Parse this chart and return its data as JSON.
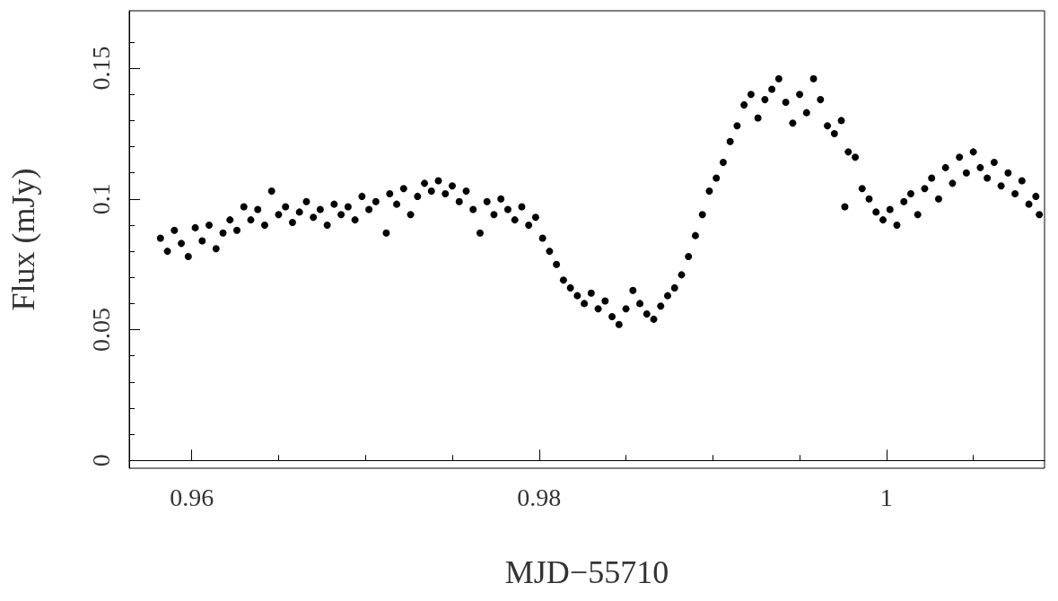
{
  "chart_data": {
    "type": "scatter",
    "xlabel": "MJD−55710",
    "ylabel": "Flux (mJy)",
    "marker": "circle",
    "xlim": [
      0.9564,
      1.0091
    ],
    "ylim": [
      -0.003,
      0.172
    ],
    "xticks": [
      0.96,
      {
        "value": 0.965,
        "label": null
      },
      {
        "value": 0.97,
        "label": null
      },
      {
        "value": 0.975,
        "label": null
      },
      0.98,
      {
        "value": 0.985,
        "label": null
      },
      {
        "value": 0.99,
        "label": null
      },
      {
        "value": 0.995,
        "label": null
      },
      1,
      {
        "value": 1.005,
        "label": null
      }
    ],
    "yticks": [
      0,
      {
        "value": 0.01,
        "label": null
      },
      {
        "value": 0.02,
        "label": null
      },
      {
        "value": 0.03,
        "label": null
      },
      {
        "value": 0.04,
        "label": null
      },
      0.05,
      {
        "value": 0.06,
        "label": null
      },
      {
        "value": 0.07,
        "label": null
      },
      {
        "value": 0.08,
        "label": null
      },
      {
        "value": 0.09,
        "label": null
      },
      0.1,
      {
        "value": 0.11,
        "label": null
      },
      {
        "value": 0.12,
        "label": null
      },
      {
        "value": 0.13,
        "label": null
      },
      {
        "value": 0.14,
        "label": null
      },
      0.15,
      {
        "value": 0.16,
        "label": null
      }
    ],
    "series": [
      {
        "color": "#000000",
        "x": [
          0.9582,
          0.9586,
          0.959,
          0.9594,
          0.9598,
          0.9602,
          0.9606,
          0.961,
          0.9614,
          0.9618,
          0.9622,
          0.9626,
          0.963,
          0.9634,
          0.9638,
          0.9642,
          0.9646,
          0.965,
          0.9654,
          0.9658,
          0.9662,
          0.9666,
          0.967,
          0.9674,
          0.9678,
          0.9682,
          0.9686,
          0.969,
          0.9694,
          0.9698,
          0.9702,
          0.9706,
          0.9712,
          0.9714,
          0.9718,
          0.9722,
          0.9726,
          0.973,
          0.9734,
          0.9738,
          0.9742,
          0.9746,
          0.975,
          0.9754,
          0.9758,
          0.9762,
          0.9766,
          0.977,
          0.9774,
          0.9778,
          0.9782,
          0.9786,
          0.979,
          0.9794,
          0.9798,
          0.9802,
          0.9806,
          0.981,
          0.9814,
          0.9818,
          0.9822,
          0.9826,
          0.983,
          0.9834,
          0.9838,
          0.9842,
          0.9846,
          0.985,
          0.9854,
          0.9858,
          0.9862,
          0.9866,
          0.987,
          0.9874,
          0.9878,
          0.9882,
          0.9886,
          0.989,
          0.9894,
          0.9898,
          0.9902,
          0.9906,
          0.991,
          0.9914,
          0.9918,
          0.9922,
          0.9926,
          0.993,
          0.9934,
          0.9938,
          0.9942,
          0.9946,
          0.995,
          0.9954,
          0.9958,
          0.9962,
          0.9966,
          0.997,
          0.9974,
          0.9976,
          0.9978,
          0.9982,
          0.9986,
          0.999,
          0.9994,
          0.9998,
          1.0002,
          1.0006,
          1.001,
          1.0014,
          1.0018,
          1.0022,
          1.0026,
          1.003,
          1.0034,
          1.0038,
          1.0042,
          1.0046,
          1.005,
          1.0054,
          1.0058,
          1.0062,
          1.0066,
          1.007,
          1.0074,
          1.0078,
          1.0082,
          1.0086,
          1.0088
        ],
        "values": [
          0.085,
          0.08,
          0.088,
          0.083,
          0.078,
          0.089,
          0.084,
          0.09,
          0.081,
          0.087,
          0.092,
          0.088,
          0.097,
          0.092,
          0.096,
          0.09,
          0.103,
          0.094,
          0.097,
          0.091,
          0.095,
          0.099,
          0.093,
          0.096,
          0.09,
          0.098,
          0.094,
          0.097,
          0.092,
          0.101,
          0.096,
          0.099,
          0.087,
          0.102,
          0.098,
          0.104,
          0.094,
          0.101,
          0.106,
          0.103,
          0.107,
          0.102,
          0.105,
          0.099,
          0.103,
          0.096,
          0.087,
          0.099,
          0.094,
          0.1,
          0.096,
          0.092,
          0.097,
          0.09,
          0.093,
          0.085,
          0.08,
          0.075,
          0.069,
          0.066,
          0.063,
          0.06,
          0.064,
          0.058,
          0.061,
          0.055,
          0.052,
          0.058,
          0.065,
          0.06,
          0.056,
          0.054,
          0.059,
          0.063,
          0.066,
          0.071,
          0.078,
          0.086,
          0.094,
          0.103,
          0.108,
          0.114,
          0.122,
          0.128,
          0.136,
          0.14,
          0.131,
          0.138,
          0.142,
          0.146,
          0.137,
          0.129,
          0.14,
          0.133,
          0.146,
          0.138,
          0.128,
          0.125,
          0.13,
          0.097,
          0.118,
          0.116,
          0.104,
          0.1,
          0.095,
          0.092,
          0.096,
          0.09,
          0.099,
          0.102,
          0.094,
          0.104,
          0.108,
          0.1,
          0.112,
          0.106,
          0.116,
          0.11,
          0.118,
          0.112,
          0.108,
          0.114,
          0.105,
          0.11,
          0.102,
          0.107,
          0.098,
          0.101,
          0.094
        ]
      }
    ]
  }
}
